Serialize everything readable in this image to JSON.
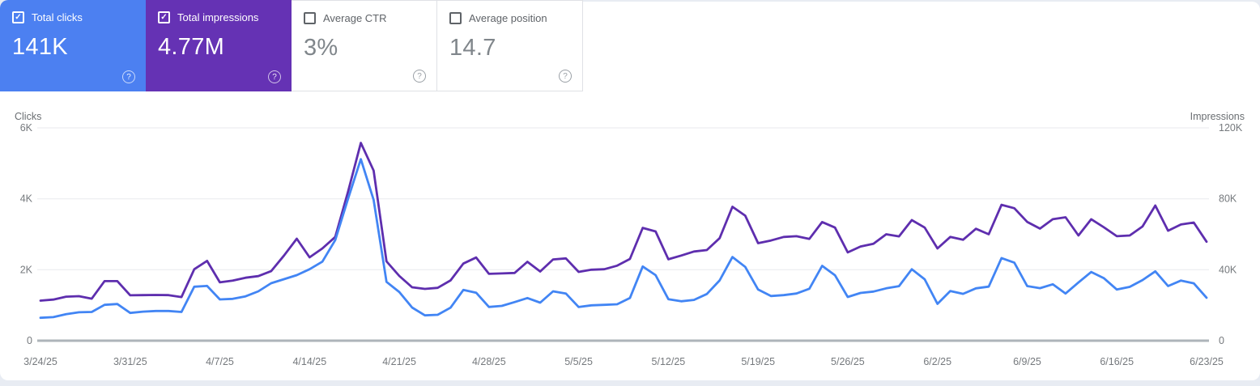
{
  "page": {
    "background": "#e8ecf3",
    "panel_background": "#ffffff"
  },
  "glyphs": {
    "checkbox_check": "✓",
    "help": "?"
  },
  "summary_cards": [
    {
      "id": "total-clicks",
      "label": "Total clicks",
      "value": "141K",
      "selected": true,
      "color": "#4c80f1"
    },
    {
      "id": "total-impressions",
      "label": "Total impressions",
      "value": "4.77M",
      "selected": true,
      "color": "#6532b4"
    },
    {
      "id": "average-ctr",
      "label": "Average CTR",
      "value": "3%",
      "selected": false,
      "color": "#ffffff"
    },
    {
      "id": "average-position",
      "label": "Average position",
      "value": "14.7",
      "selected": false,
      "color": "#ffffff"
    }
  ],
  "chart_data": {
    "type": "line",
    "x_start": "3/24/25",
    "x_end": "6/23/25",
    "points": 92,
    "x_tick_labels": [
      "3/24/25",
      "3/31/25",
      "4/7/25",
      "4/14/25",
      "4/21/25",
      "4/28/25",
      "5/5/25",
      "5/12/25",
      "5/19/25",
      "5/26/25",
      "6/2/25",
      "6/9/25",
      "6/16/25",
      "6/23/25"
    ],
    "x_tick_every_days": 7,
    "y_left": {
      "title": "Clicks",
      "ticks": [
        "0",
        "2K",
        "4K",
        "6K"
      ],
      "max": 6000
    },
    "y_right": {
      "title": "Impressions",
      "ticks": [
        "0",
        "40K",
        "80K",
        "120K"
      ],
      "max": 120000
    },
    "grid": true,
    "legend": "none",
    "series": [
      {
        "name": "Total impressions",
        "axis": "right",
        "color": "#5e2eae",
        "values": [
          22600,
          23200,
          24800,
          25100,
          23700,
          33600,
          33600,
          25600,
          25700,
          25800,
          25700,
          24600,
          40300,
          45000,
          32900,
          33900,
          35500,
          36400,
          39200,
          48000,
          57500,
          47000,
          52000,
          58500,
          84000,
          111500,
          95900,
          44700,
          36500,
          30100,
          29200,
          29800,
          34000,
          43500,
          46900,
          37700,
          37900,
          38200,
          44500,
          39000,
          45800,
          46400,
          38800,
          40000,
          40300,
          42300,
          46100,
          63600,
          61600,
          45900,
          48000,
          50300,
          51100,
          57800,
          75500,
          70500,
          55000,
          56500,
          58500,
          58900,
          57400,
          66900,
          63800,
          49800,
          53100,
          54600,
          60000,
          58800,
          68000,
          63800,
          52000,
          58500,
          56900,
          63100,
          60000,
          76600,
          74700,
          67000,
          63200,
          68500,
          69600,
          59300,
          68500,
          63900,
          58900,
          59300,
          64400,
          76200,
          62000,
          65500,
          66600,
          55800
        ]
      },
      {
        "name": "Total clicks",
        "axis": "left",
        "color": "#4285f4",
        "values": [
          645,
          665,
          745,
          800,
          810,
          1010,
          1034,
          783,
          820,
          837,
          837,
          810,
          1521,
          1544,
          1164,
          1179,
          1250,
          1392,
          1620,
          1734,
          1848,
          2014,
          2228,
          2836,
          4000,
          5117,
          3970,
          1658,
          1370,
          935,
          715,
          731,
          930,
          1430,
          1353,
          951,
          981,
          1088,
          1202,
          1072,
          1391,
          1330,
          950,
          997,
          1011,
          1026,
          1202,
          2092,
          1847,
          1170,
          1110,
          1150,
          1316,
          1700,
          2360,
          2080,
          1441,
          1260,
          1285,
          1330,
          1464,
          2110,
          1846,
          1231,
          1346,
          1385,
          1477,
          1538,
          2015,
          1731,
          1038,
          1400,
          1320,
          1477,
          1523,
          2330,
          2200,
          1540,
          1480,
          1590,
          1330,
          1640,
          1938,
          1760,
          1441,
          1518,
          1709,
          1955,
          1541,
          1695,
          1617,
          1211
        ]
      }
    ]
  }
}
